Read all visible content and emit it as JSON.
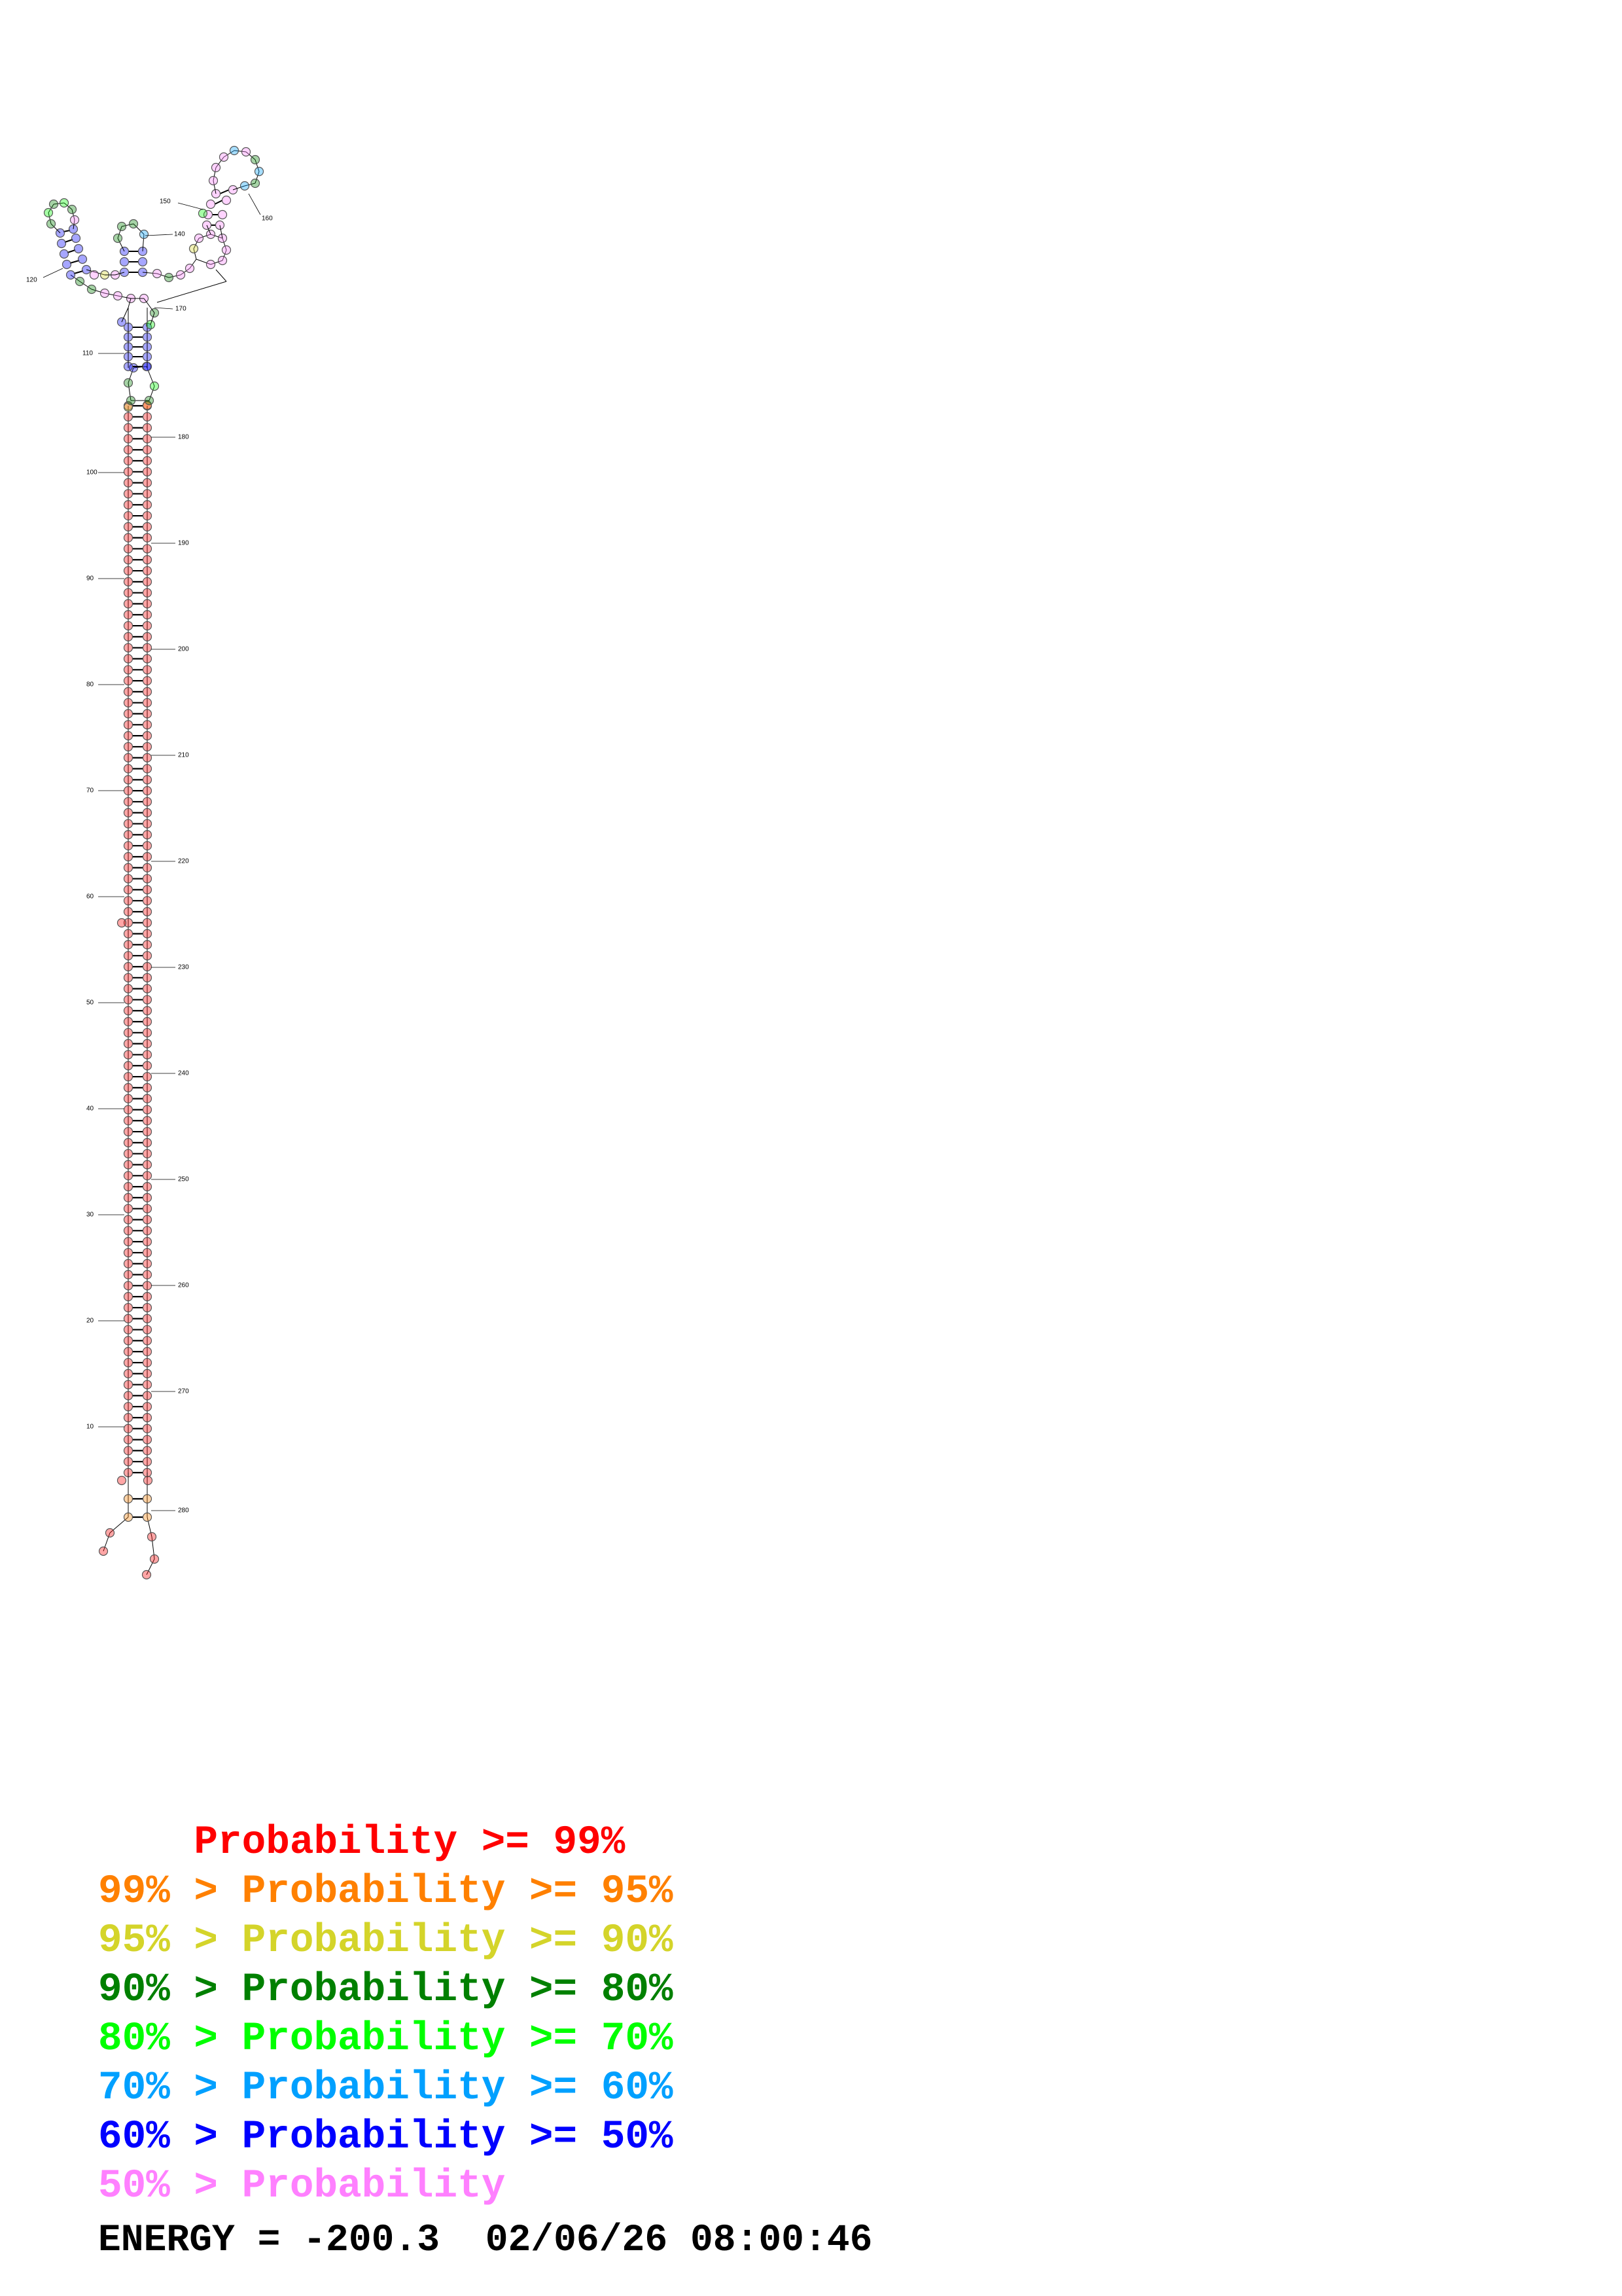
{
  "diagram": {
    "residue_count": 284,
    "position_labels": [
      "10",
      "20",
      "30",
      "40",
      "50",
      "60",
      "70",
      "80",
      "90",
      "100",
      "110",
      "120",
      "140",
      "150",
      "160",
      "170",
      "180",
      "190",
      "200",
      "210",
      "220",
      "230",
      "240",
      "250",
      "260",
      "270",
      "280"
    ],
    "color_scale": {
      "p99": "#ff0000",
      "p95": "#ff8000",
      "p90": "#d4d42a",
      "p80": "#008000",
      "p70": "#00ff00",
      "p60": "#00a0ff",
      "p50": "#0000ff",
      "p0": "#ff80ff"
    }
  },
  "legend": [
    {
      "prefix": "    ",
      "text": "    Probability >= 99%",
      "color": "#ff0000"
    },
    {
      "text": "99% > Probability >= 95%",
      "color": "#ff8000"
    },
    {
      "text": "95% > Probability >= 90%",
      "color": "#d4d42a"
    },
    {
      "text": "90% > Probability >= 80%",
      "color": "#008000"
    },
    {
      "text": "80% > Probability >= 70%",
      "color": "#00ff00"
    },
    {
      "text": "70% > Probability >= 60%",
      "color": "#00a0ff"
    },
    {
      "text": "60% > Probability >= 50%",
      "color": "#0000ff"
    },
    {
      "text": "50% > Probability",
      "color": "#ff80ff"
    }
  ],
  "footer": {
    "text": "ENERGY = -200.3  02/06/26 08:00:46"
  }
}
